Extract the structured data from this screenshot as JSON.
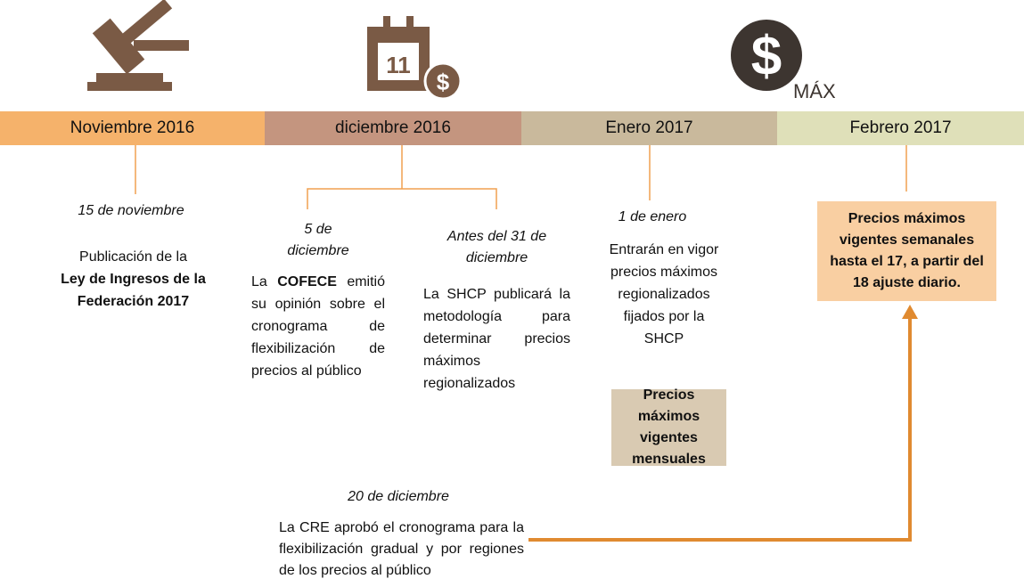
{
  "icons": {
    "calendar_label": "11",
    "calendar_coin": "$",
    "price_symbol": "$",
    "price_label": "MÁX"
  },
  "timeline": {
    "months": [
      "Noviembre 2016",
      "diciembre 2016",
      "Enero 2017",
      "Febrero 2017"
    ]
  },
  "events": [
    {
      "date": "15 de noviembre",
      "text": [
        {
          "text": "Publicación de la"
        },
        {
          "text": "Ley de Ingresos de la Federación 2017",
          "bold": true
        }
      ]
    },
    {
      "date": "5 de diciembre",
      "text": [
        {
          "text": "La"
        },
        {
          "text": "COFECE",
          "bold": true
        },
        {
          "text": "emitió su opinión sobre el cronograma de flexibilización de precios al público"
        }
      ]
    },
    {
      "date": "Antes del 31 de diciembre",
      "text": [
        {
          "text": "La SHCP publicará la metodología para determinar precios máximos regionalizados"
        }
      ]
    },
    {
      "date": "1 de enero",
      "text": [
        {
          "text": "Entrarán en vigor precios máximos regionalizados fijados por la SHCP"
        }
      ]
    },
    {
      "date": "20 de diciembre",
      "text": [
        {
          "text": "La CRE aprobó el cronograma para la flexibilización gradual y por regiones de los precios al público"
        }
      ]
    }
  ],
  "boxes": [
    {
      "text": "Precios máximos vigentes mensuales"
    },
    {
      "text": "Precios máximos vigentes semanales hasta el 17, a partir del 18 ajuste diario."
    }
  ]
}
